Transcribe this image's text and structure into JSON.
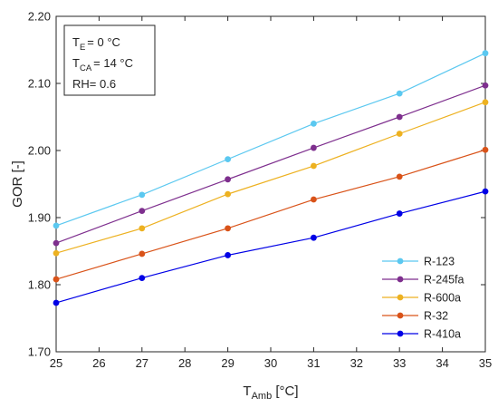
{
  "chart_data": {
    "type": "line",
    "x": [
      25,
      27,
      29,
      31,
      33,
      35
    ],
    "series": [
      {
        "name": "R-123",
        "color": "#5bc8f0",
        "values": [
          1.888,
          1.934,
          1.987,
          2.04,
          2.085,
          2.145
        ]
      },
      {
        "name": "R-245fa",
        "color": "#7e2f8e",
        "values": [
          1.862,
          1.91,
          1.957,
          2.004,
          2.05,
          2.097
        ]
      },
      {
        "name": "R-600a",
        "color": "#edb120",
        "values": [
          1.847,
          1.884,
          1.935,
          1.977,
          2.025,
          2.072
        ]
      },
      {
        "name": "R-32",
        "color": "#d95319",
        "values": [
          1.808,
          1.846,
          1.884,
          1.927,
          1.961,
          2.001
        ]
      },
      {
        "name": "R-410a",
        "color": "#0000e6",
        "values": [
          1.773,
          1.81,
          1.844,
          1.87,
          1.906,
          1.939
        ]
      }
    ],
    "xlim": [
      25,
      35
    ],
    "ylim": [
      1.7,
      2.2
    ],
    "xticks": [
      "25",
      "26",
      "27",
      "28",
      "29",
      "30",
      "31",
      "32",
      "33",
      "34",
      "35"
    ],
    "yticks": [
      "1.70",
      "1.80",
      "1.90",
      "2.00",
      "2.10",
      "2.20"
    ],
    "xlabel": {
      "main": "T",
      "sub": "Amb",
      "unit": " [°C]"
    },
    "ylabel": "GOR [-]",
    "grid": false,
    "legend_position": "bottom-right",
    "annotation": [
      {
        "main": "T",
        "sub": "E",
        "rest": "= 0 °C"
      },
      {
        "main": "T",
        "sub": "CA",
        "rest": "= 14 °C"
      },
      {
        "main": "RH= 0.6",
        "sub": "",
        "rest": ""
      }
    ]
  }
}
